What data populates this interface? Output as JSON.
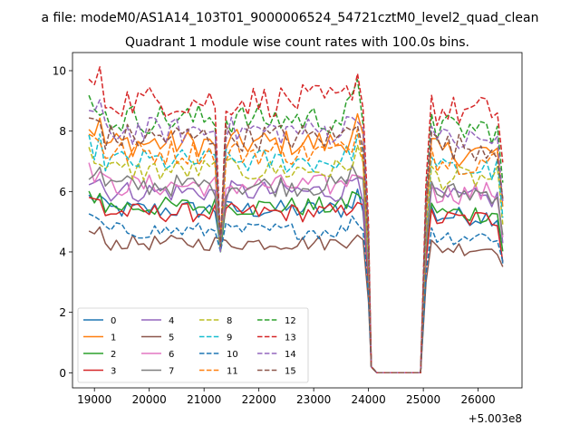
{
  "chart_data": {
    "type": "line",
    "suptitle": "a file: modeM0/AS1A14_103T01_9000006524_54721cztM0_level2_quad_clean",
    "title": "Quadrant 1 module wise count rates with 100.0s bins.",
    "xlabel": "",
    "ylabel": "",
    "offset_label": "+5.003e8",
    "x_start": 18900,
    "x_step": 100,
    "gap": [
      24050,
      24950
    ],
    "gap_value": 0,
    "xlim": [
      18600,
      26800
    ],
    "ylim": [
      -0.5,
      10.6
    ],
    "xticks": [
      19000,
      20000,
      21000,
      22000,
      23000,
      24000,
      25000,
      26000
    ],
    "xtick_labels": [
      "19000",
      "20000",
      "21000",
      "22000",
      "23000",
      "24000",
      "25000",
      "26000"
    ],
    "yticks": [
      0,
      2,
      4,
      6,
      8,
      10
    ],
    "ytick_labels": [
      "0",
      "2",
      "4",
      "6",
      "8",
      "10"
    ],
    "grid": false,
    "legend_position": "lower-left",
    "series": [
      {
        "name": "0",
        "color": "#1f77b4",
        "dash": "solid",
        "level": 5.4,
        "end": 3.1
      },
      {
        "name": "1",
        "color": "#ff7f0e",
        "dash": "solid",
        "level": 7.6,
        "end": 4.9
      },
      {
        "name": "2",
        "color": "#2ca02c",
        "dash": "solid",
        "level": 5.5,
        "end": 3.6
      },
      {
        "name": "3",
        "color": "#d62728",
        "dash": "solid",
        "level": 5.3,
        "end": 3.2
      },
      {
        "name": "4",
        "color": "#9467bd",
        "dash": "solid",
        "level": 6.0,
        "end": 3.8
      },
      {
        "name": "5",
        "color": "#8c564b",
        "dash": "solid",
        "level": 4.3,
        "end": 3.3
      },
      {
        "name": "6",
        "color": "#e377c2",
        "dash": "solid",
        "level": 6.2,
        "end": 4.0
      },
      {
        "name": "7",
        "color": "#7f7f7f",
        "dash": "solid",
        "level": 6.2,
        "end": 4.1
      },
      {
        "name": "8",
        "color": "#bcbd22",
        "dash": "dashed",
        "level": 6.7,
        "end": 4.4
      },
      {
        "name": "9",
        "color": "#17becf",
        "dash": "dashed",
        "level": 7.0,
        "end": 4.6
      },
      {
        "name": "10",
        "color": "#1f77b4",
        "dash": "dashed",
        "level": 4.7,
        "end": 3.4
      },
      {
        "name": "11",
        "color": "#ff7f0e",
        "dash": "dashed",
        "level": 7.3,
        "end": 5.3
      },
      {
        "name": "12",
        "color": "#2ca02c",
        "dash": "dashed",
        "level": 8.4,
        "end": 5.7
      },
      {
        "name": "13",
        "color": "#d62728",
        "dash": "dashed",
        "level": 9.0,
        "end": 6.4
      },
      {
        "name": "14",
        "color": "#9467bd",
        "dash": "dashed",
        "level": 8.0,
        "end": 5.0
      },
      {
        "name": "15",
        "color": "#8c564b",
        "dash": "dashed",
        "level": 7.8,
        "end": 5.2
      }
    ]
  }
}
